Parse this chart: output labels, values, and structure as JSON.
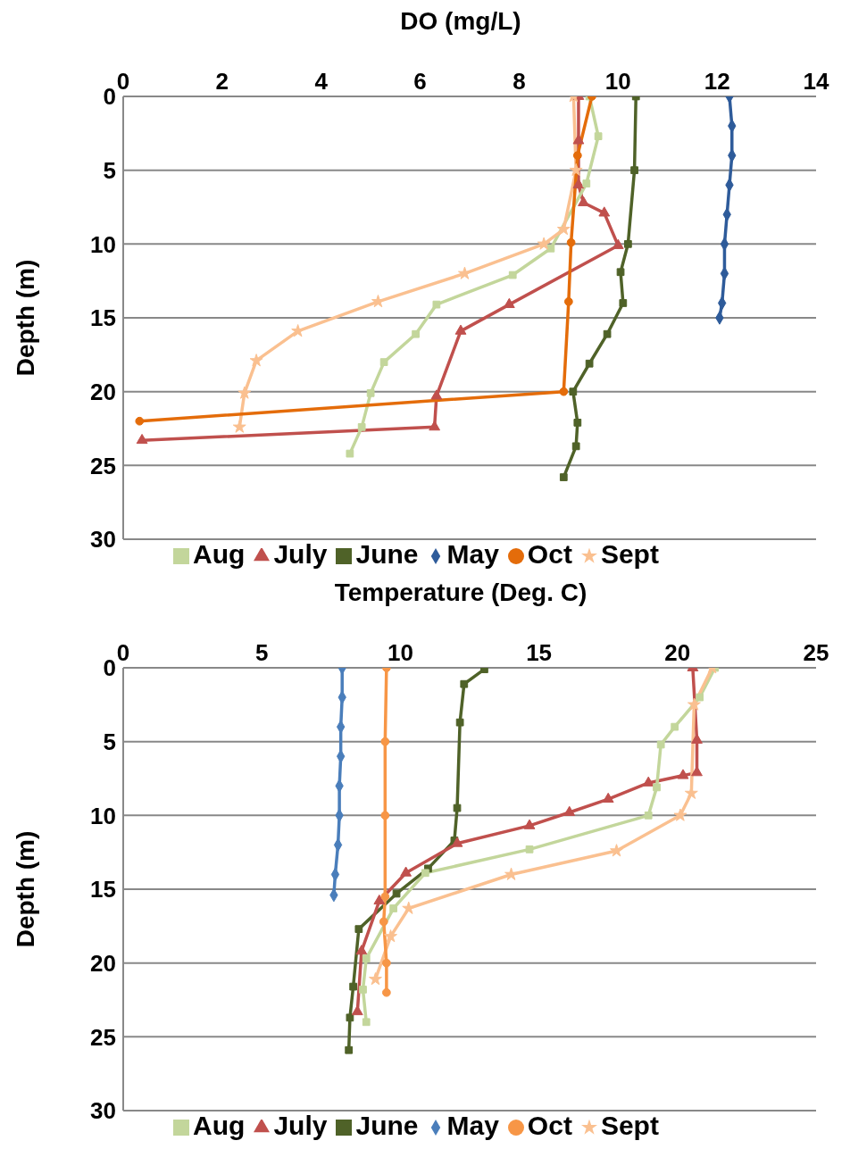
{
  "chart_data": [
    {
      "type": "line",
      "xlabel": "DO (mg/L)",
      "ylabel": "Depth (m)",
      "xlim": [
        0,
        14
      ],
      "xticks": [
        0,
        2,
        4,
        6,
        8,
        10,
        12,
        14
      ],
      "ylim": [
        30,
        0
      ],
      "yticks": [
        0,
        5,
        10,
        15,
        20,
        25,
        30
      ],
      "grid": "y",
      "legend": "bottom",
      "series": [
        {
          "name": "May",
          "color": "#2e5b9a",
          "marker": "diamond",
          "x": [
            12.25,
            12.3,
            12.3,
            12.25,
            12.2,
            12.15,
            12.15,
            12.1,
            12.05
          ],
          "values": [
            0,
            2,
            4,
            6,
            8,
            10,
            12,
            14,
            15
          ]
        },
        {
          "name": "June",
          "color": "#4f6228",
          "marker": "square",
          "x": [
            10.36,
            10.33,
            10.2,
            10.05,
            10.1,
            9.78,
            9.42,
            9.09,
            9.18,
            9.15,
            8.9
          ],
          "values": [
            0,
            5,
            10,
            11.9,
            14,
            16.1,
            18.1,
            20,
            22.1,
            23.7,
            25.8
          ]
        },
        {
          "name": "July",
          "color": "#c0504d",
          "marker": "triangle",
          "x": [
            9.2,
            9.2,
            9.2,
            9.3,
            9.72,
            10,
            7.8,
            6.82,
            6.33,
            6.29,
            0.38
          ],
          "values": [
            0,
            3,
            6,
            7.2,
            7.9,
            10.1,
            14.1,
            15.9,
            20.3,
            22.4,
            23.3
          ]
        },
        {
          "name": "Aug",
          "color": "#c3d69b",
          "marker": "square",
          "x": [
            9.42,
            9.6,
            9.36,
            8.64,
            7.87,
            6.33,
            5.91,
            5.27,
            5,
            4.82,
            4.58
          ],
          "values": [
            0,
            2.7,
            5.9,
            10.3,
            12.1,
            14.1,
            16.1,
            18,
            20.1,
            22.4,
            24.2
          ]
        },
        {
          "name": "Sept",
          "color": "#fac090",
          "marker": "star",
          "x": [
            9.1,
            9.15,
            8.9,
            8.5,
            6.9,
            5.15,
            3.53,
            2.69,
            2.45,
            2.35
          ],
          "values": [
            0,
            5,
            9,
            10,
            12,
            13.9,
            15.9,
            17.9,
            20.1,
            22.4
          ]
        },
        {
          "name": "Oct",
          "color": "#e46c0a",
          "marker": "circle",
          "x": [
            9.47,
            9.18,
            9.05,
            9,
            8.9,
            0.33
          ],
          "values": [
            0,
            4,
            9.9,
            13.9,
            20,
            22
          ]
        }
      ]
    },
    {
      "type": "line",
      "xlabel": "Temperature (Deg. C)",
      "ylabel": "Depth (m)",
      "xlim": [
        0,
        25
      ],
      "xticks": [
        0,
        5,
        10,
        15,
        20,
        25
      ],
      "ylim": [
        30,
        0
      ],
      "yticks": [
        0,
        5,
        10,
        15,
        20,
        25,
        30
      ],
      "grid": "y",
      "legend": "bottom",
      "series": [
        {
          "name": "May",
          "color": "#4a7ebb",
          "marker": "diamond",
          "x": [
            7.9,
            7.9,
            7.85,
            7.85,
            7.8,
            7.8,
            7.75,
            7.65,
            7.6
          ],
          "values": [
            0,
            2,
            4,
            6,
            8,
            10,
            12,
            14,
            15.4
          ]
        },
        {
          "name": "June",
          "color": "#4f6228",
          "marker": "square",
          "x": [
            13.03,
            12.3,
            12.15,
            12.05,
            11.95,
            11,
            9.86,
            8.5,
            8.3,
            8.18,
            8.14
          ],
          "values": [
            0.1,
            1.1,
            3.7,
            9.5,
            11.7,
            13.6,
            15.3,
            17.7,
            21.6,
            23.7,
            25.9
          ]
        },
        {
          "name": "July",
          "color": "#c0504d",
          "marker": "triangle",
          "x": [
            20.55,
            20.7,
            20.7,
            20.2,
            18.95,
            17.5,
            16.1,
            14.66,
            12.05,
            10.2,
            9.24,
            8.6,
            8.45
          ],
          "values": [
            0,
            4.9,
            7.1,
            7.3,
            7.8,
            8.9,
            9.8,
            10.7,
            11.9,
            13.9,
            15.8,
            19.2,
            23.3
          ]
        },
        {
          "name": "Aug",
          "color": "#c3d69b",
          "marker": "square",
          "x": [
            21.35,
            20.8,
            19.9,
            19.4,
            19.25,
            18.95,
            14.66,
            10.9,
            9.75,
            8.77,
            8.65,
            8.77
          ],
          "values": [
            0,
            2,
            4,
            5.2,
            8.1,
            10,
            12.3,
            13.9,
            16.3,
            19.7,
            21.8,
            24
          ]
        },
        {
          "name": "Sept",
          "color": "#fac090",
          "marker": "star",
          "x": [
            21.25,
            20.6,
            20.5,
            20.1,
            17.8,
            14,
            10.3,
            9.65,
            9.1
          ],
          "values": [
            0,
            2.5,
            8.5,
            10,
            12.4,
            14,
            16.3,
            18.2,
            21.1
          ]
        },
        {
          "name": "Oct",
          "color": "#f79646",
          "marker": "circle",
          "x": [
            9.5,
            9.45,
            9.45,
            9.45,
            9.4,
            9.5,
            9.5
          ],
          "values": [
            0,
            5,
            10,
            15.5,
            17.2,
            20,
            22
          ]
        }
      ]
    }
  ]
}
